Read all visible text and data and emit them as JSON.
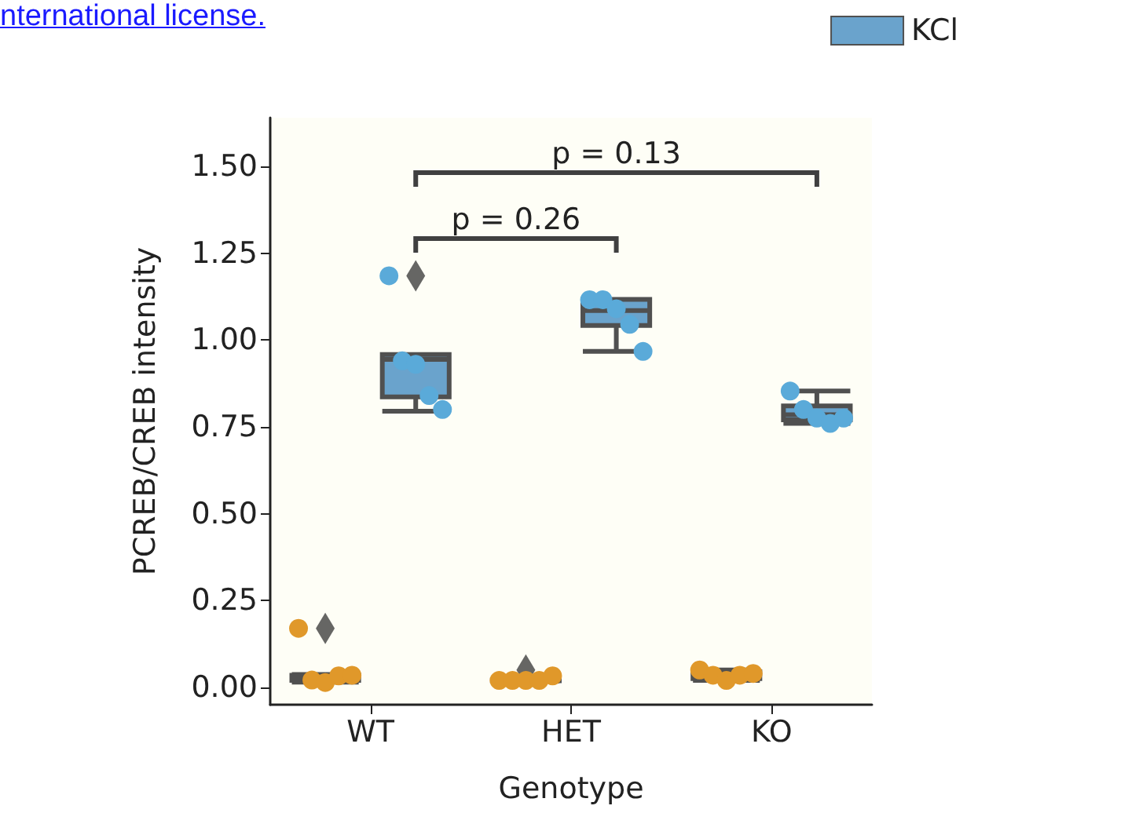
{
  "chart_data": {
    "type": "box",
    "xlabel": "Genotype",
    "ylabel": "PCREB/CREB intensity",
    "categories": [
      "WT",
      "HET",
      "KO"
    ],
    "ylim": [
      -0.05,
      1.64
    ],
    "yticks": [
      {
        "value": 0,
        "label": "0.00"
      },
      {
        "value": 0.25,
        "label": "0.25"
      },
      {
        "value": 0.5,
        "label": "0.50"
      },
      {
        "value": 0.75,
        "label": "0.75"
      },
      {
        "value": 1,
        "label": "1.00"
      },
      {
        "value": 1.25,
        "label": "1.25"
      },
      {
        "value": 1.5,
        "label": "1.50"
      }
    ],
    "series": [
      {
        "color": "#ffffff",
        "boxes": [
          {
            "low": 0.015,
            "q1": 0.02,
            "median": 0.025,
            "q3": 0.035,
            "high": 0.037,
            "outliers": [
              0.17
            ]
          },
          {
            "low": 0.018,
            "q1": 0.019,
            "median": 0.02,
            "q3": 0.022,
            "high": 0.025,
            "outliers": [
              0.05
            ]
          },
          {
            "low": 0.02,
            "q1": 0.025,
            "median": 0.035,
            "q3": 0.045,
            "high": 0.05
          }
        ]
      },
      {
        "name": "KCl",
        "color": "#6aa3cc",
        "boxes": [
          {
            "low": 0.795,
            "q1": 0.836,
            "median": 0.944,
            "q3": 0.958,
            "high": 0.958,
            "outliers": [
              1.185
            ]
          },
          {
            "low": 0.967,
            "q1": 1.042,
            "median": 1.085,
            "q3": 1.117,
            "high": 1.117
          },
          {
            "low": 0.76,
            "q1": 0.77,
            "median": 0.785,
            "q3": 0.81,
            "high": 0.853
          }
        ]
      },
      {
        "type": "scatter",
        "color": "#e0982a",
        "x": [
          "WT",
          "WT",
          "WT",
          "WT",
          "WT",
          "HET",
          "HET",
          "HET",
          "HET",
          "HET",
          "KO",
          "KO",
          "KO",
          "KO",
          "KO"
        ],
        "values": [
          0.17,
          0.021,
          0.014,
          0.033,
          0.035,
          0.02,
          0.02,
          0.02,
          0.02,
          0.033,
          0.05,
          0.035,
          0.02,
          0.035,
          0.04
        ]
      },
      {
        "type": "scatter",
        "color": "#5aaad9",
        "x": [
          "WT",
          "WT",
          "WT",
          "WT",
          "WT",
          "HET",
          "HET",
          "HET",
          "HET",
          "HET",
          "KO",
          "KO",
          "KO",
          "KO",
          "KO"
        ],
        "values": [
          1.185,
          0.94,
          0.93,
          0.84,
          0.8,
          1.116,
          1.116,
          1.09,
          1.045,
          0.967,
          0.853,
          0.8,
          0.775,
          0.76,
          0.775
        ]
      }
    ],
    "marker": "circle",
    "legend": "top right",
    "annotations": [
      "p = 0.26",
      "p = 0.13",
      "nternational license."
    ]
  }
}
